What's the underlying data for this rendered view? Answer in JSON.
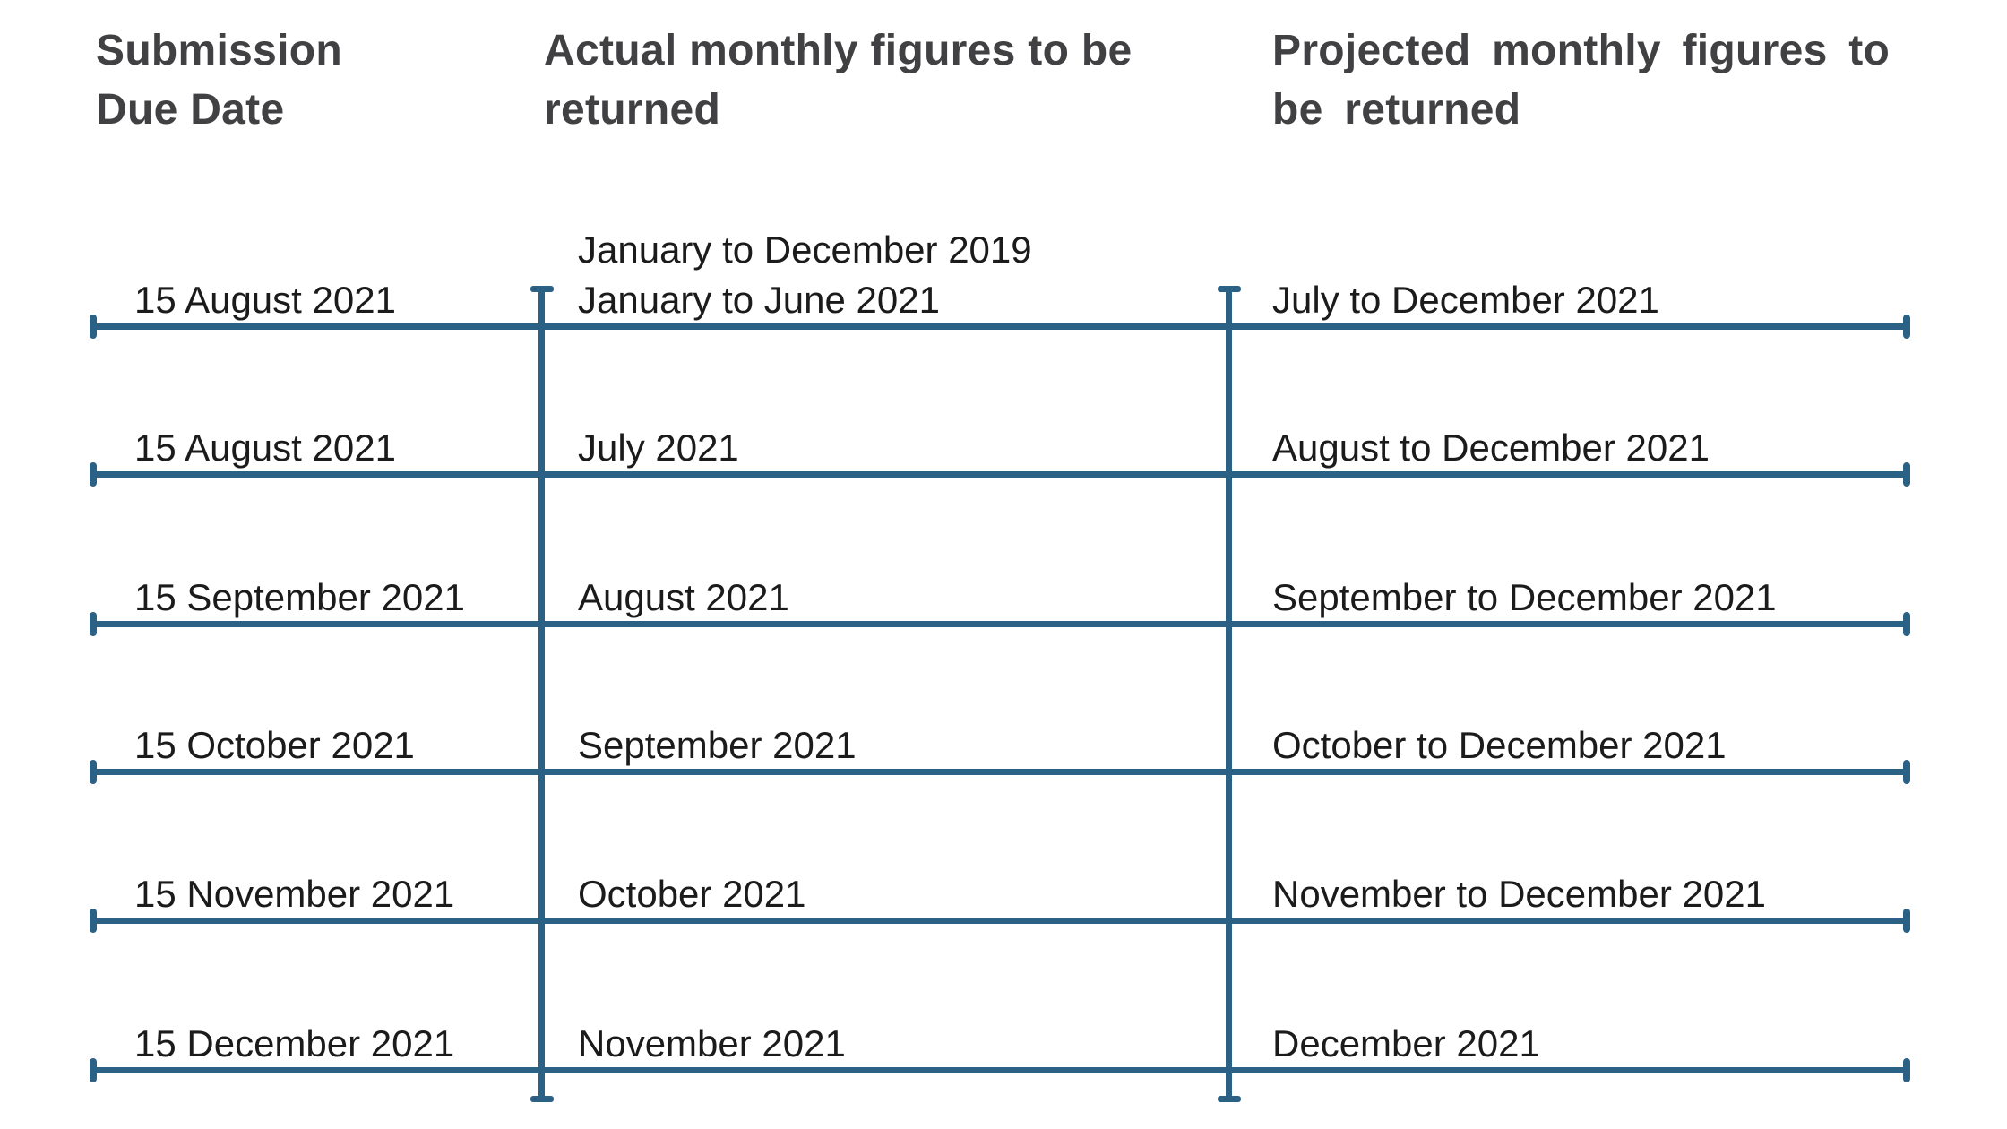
{
  "palette": {
    "line_color": "#2C6186",
    "header_text_color": "#414042",
    "body_text_color": "#1b1b1b",
    "background_color": "#ffffff"
  },
  "headers": {
    "col1": "Submission Due Date",
    "col2": "Actual monthly figures to be returned",
    "col3": "Projected monthly figures to be returned"
  },
  "rows": [
    {
      "due_date": "15 August 2021",
      "actual_lines": [
        "January to December 2019",
        "January to June 2021"
      ],
      "projected": "July to December 2021"
    },
    {
      "due_date": "15 August 2021",
      "actual_lines": [
        "July 2021"
      ],
      "projected": "August to December 2021"
    },
    {
      "due_date": "15 September 2021",
      "actual_lines": [
        "August 2021"
      ],
      "projected": "September to December 2021"
    },
    {
      "due_date": "15 October 2021",
      "actual_lines": [
        "September 2021"
      ],
      "projected": "October to December 2021"
    },
    {
      "due_date": "15 November 2021",
      "actual_lines": [
        "October 2021"
      ],
      "projected": "November to December 2021"
    },
    {
      "due_date": "15 December 2021",
      "actual_lines": [
        "November 2021"
      ],
      "projected": "December 2021"
    }
  ]
}
